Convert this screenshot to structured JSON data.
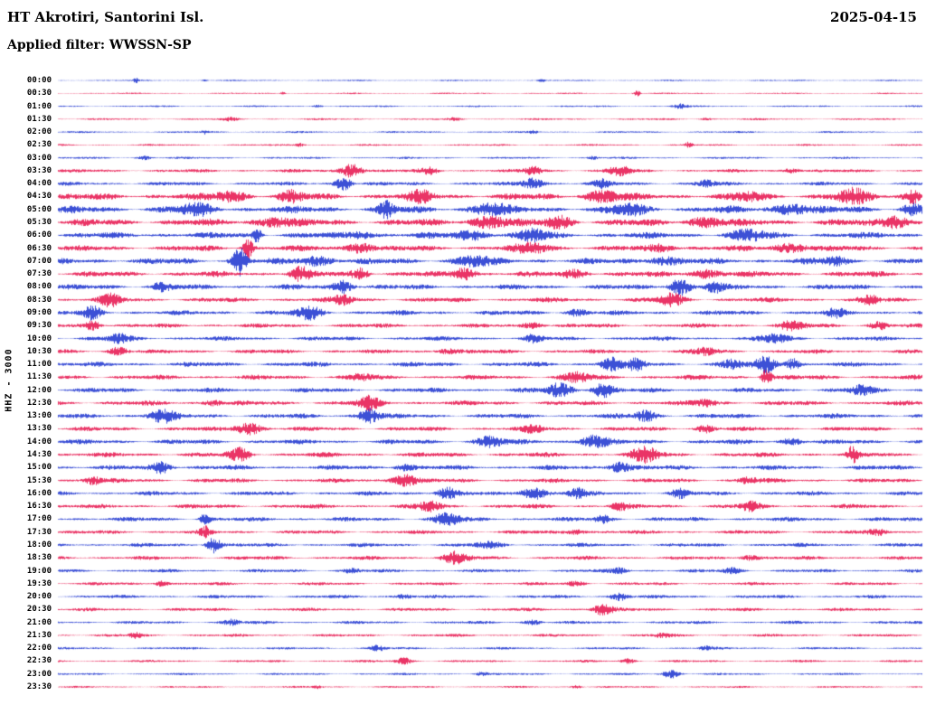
{
  "header": {
    "station_title": "HT Akrotiri, Santorini Isl.",
    "date": "2025-04-15",
    "filter_label": "Applied filter: WWSSN-SP"
  },
  "left_axis": {
    "channel_label": "HHZ - 3000"
  },
  "chart_data": {
    "type": "line",
    "subtype": "helicorder-seismogram",
    "title": "HT Akrotiri, Santorini Isl.",
    "date": "2025-04-15",
    "filter": "WWSSN-SP",
    "ylabel": "HHZ - 3000",
    "row_duration_minutes": 30,
    "rows_count": 48,
    "legend": "none",
    "grid": false,
    "colors": {
      "blue": "#0a23cc",
      "red": "#e4003f"
    },
    "rows": [
      {
        "time": "00:00",
        "color": "blue",
        "noise": 0.6,
        "events": [
          [
            0.09,
            2.5,
            0.003
          ],
          [
            0.17,
            1.5,
            0.003
          ],
          [
            0.56,
            2,
            0.003
          ]
        ]
      },
      {
        "time": "00:30",
        "color": "red",
        "noise": 0.6,
        "events": [
          [
            0.26,
            1.5,
            0.003
          ],
          [
            0.67,
            3.5,
            0.004
          ]
        ]
      },
      {
        "time": "01:00",
        "color": "blue",
        "noise": 0.7,
        "events": [
          [
            0.3,
            1.5,
            0.006
          ],
          [
            0.72,
            2.5,
            0.008
          ]
        ]
      },
      {
        "time": "01:30",
        "color": "red",
        "noise": 0.8,
        "events": [
          [
            0.2,
            1.8,
            0.008
          ],
          [
            0.46,
            1.8,
            0.006
          ],
          [
            0.75,
            1.5,
            0.006
          ]
        ]
      },
      {
        "time": "02:00",
        "color": "blue",
        "noise": 0.8,
        "events": [
          [
            0.17,
            2,
            0.004
          ],
          [
            0.55,
            1.5,
            0.005
          ]
        ]
      },
      {
        "time": "02:30",
        "color": "red",
        "noise": 0.8,
        "events": [
          [
            0.28,
            2,
            0.006
          ],
          [
            0.73,
            3.2,
            0.004
          ]
        ]
      },
      {
        "time": "03:00",
        "color": "blue",
        "noise": 0.9,
        "events": [
          [
            0.1,
            2,
            0.008
          ],
          [
            0.62,
            1.8,
            0.006
          ]
        ]
      },
      {
        "time": "03:30",
        "color": "red",
        "noise": 1.4,
        "events": [
          [
            0.34,
            8,
            0.012
          ],
          [
            0.43,
            3.5,
            0.01
          ],
          [
            0.55,
            4.5,
            0.01
          ],
          [
            0.65,
            5.5,
            0.012
          ],
          [
            0.85,
            3,
            0.01
          ]
        ]
      },
      {
        "time": "04:00",
        "color": "blue",
        "noise": 1.6,
        "events": [
          [
            0.33,
            8,
            0.009
          ],
          [
            0.55,
            6.5,
            0.012
          ],
          [
            0.63,
            4,
            0.01
          ],
          [
            0.75,
            3.5,
            0.01
          ]
        ]
      },
      {
        "time": "04:30",
        "color": "red",
        "noise": 2.8,
        "events": [
          [
            0.2,
            5,
            0.02
          ],
          [
            0.27,
            6,
            0.012
          ],
          [
            0.42,
            5,
            0.015
          ],
          [
            0.63,
            6,
            0.02
          ],
          [
            0.8,
            4,
            0.015
          ],
          [
            0.92,
            7,
            0.02
          ],
          [
            0.99,
            8,
            0.01
          ]
        ]
      },
      {
        "time": "05:00",
        "color": "blue",
        "noise": 3.0,
        "events": [
          [
            0.16,
            5,
            0.02
          ],
          [
            0.38,
            8,
            0.008
          ],
          [
            0.5,
            6,
            0.02
          ],
          [
            0.66,
            5,
            0.02
          ],
          [
            0.85,
            6,
            0.02
          ],
          [
            0.99,
            7,
            0.01
          ]
        ]
      },
      {
        "time": "05:30",
        "color": "red",
        "noise": 3.0,
        "events": [
          [
            0.25,
            5,
            0.02
          ],
          [
            0.5,
            7,
            0.02
          ],
          [
            0.58,
            6,
            0.015
          ],
          [
            0.75,
            5,
            0.02
          ],
          [
            0.97,
            7,
            0.015
          ]
        ]
      },
      {
        "time": "06:00",
        "color": "blue",
        "noise": 2.6,
        "events": [
          [
            0.23,
            9,
            0.005
          ],
          [
            0.35,
            4,
            0.015
          ],
          [
            0.48,
            5,
            0.02
          ],
          [
            0.55,
            6,
            0.015
          ],
          [
            0.8,
            5,
            0.02
          ]
        ]
      },
      {
        "time": "06:30",
        "color": "red",
        "noise": 2.4,
        "events": [
          [
            0.22,
            11,
            0.006
          ],
          [
            0.35,
            6,
            0.015
          ],
          [
            0.55,
            5,
            0.02
          ],
          [
            0.7,
            4,
            0.015
          ],
          [
            0.85,
            5,
            0.02
          ]
        ]
      },
      {
        "time": "07:00",
        "color": "blue",
        "noise": 2.6,
        "events": [
          [
            0.21,
            15,
            0.008
          ],
          [
            0.3,
            5,
            0.02
          ],
          [
            0.48,
            5,
            0.02
          ],
          [
            0.7,
            4.5,
            0.02
          ],
          [
            0.9,
            4,
            0.015
          ]
        ]
      },
      {
        "time": "07:30",
        "color": "red",
        "noise": 2.4,
        "events": [
          [
            0.28,
            7,
            0.012
          ],
          [
            0.35,
            6,
            0.01
          ],
          [
            0.47,
            7,
            0.012
          ],
          [
            0.6,
            4,
            0.015
          ],
          [
            0.75,
            4.5,
            0.02
          ]
        ]
      },
      {
        "time": "08:00",
        "color": "blue",
        "noise": 2.2,
        "events": [
          [
            0.12,
            4,
            0.012
          ],
          [
            0.33,
            7,
            0.012
          ],
          [
            0.72,
            9,
            0.012
          ],
          [
            0.76,
            6,
            0.01
          ]
        ]
      },
      {
        "time": "08:30",
        "color": "red",
        "noise": 2.0,
        "events": [
          [
            0.06,
            6,
            0.012
          ],
          [
            0.33,
            5,
            0.012
          ],
          [
            0.71,
            7,
            0.012
          ],
          [
            0.94,
            4.5,
            0.01
          ]
        ]
      },
      {
        "time": "09:00",
        "color": "blue",
        "noise": 2.0,
        "events": [
          [
            0.04,
            6.5,
            0.01
          ],
          [
            0.29,
            7,
            0.015
          ],
          [
            0.6,
            3.5,
            0.012
          ],
          [
            0.9,
            4,
            0.01
          ]
        ]
      },
      {
        "time": "09:30",
        "color": "red",
        "noise": 1.8,
        "events": [
          [
            0.04,
            5,
            0.01
          ],
          [
            0.55,
            3.5,
            0.012
          ],
          [
            0.85,
            4.5,
            0.015
          ],
          [
            0.95,
            4.5,
            0.01
          ]
        ]
      },
      {
        "time": "10:00",
        "color": "blue",
        "noise": 1.8,
        "events": [
          [
            0.07,
            4.5,
            0.012
          ],
          [
            0.55,
            3.5,
            0.01
          ],
          [
            0.83,
            4.5,
            0.015
          ]
        ]
      },
      {
        "time": "10:30",
        "color": "red",
        "noise": 1.8,
        "events": [
          [
            0.07,
            4.5,
            0.01
          ],
          [
            0.45,
            3,
            0.012
          ],
          [
            0.75,
            3.5,
            0.012
          ]
        ]
      },
      {
        "time": "11:00",
        "color": "blue",
        "noise": 2.0,
        "events": [
          [
            0.64,
            7,
            0.012
          ],
          [
            0.67,
            8,
            0.008
          ],
          [
            0.78,
            4.5,
            0.012
          ],
          [
            0.82,
            8,
            0.012
          ],
          [
            0.85,
            7,
            0.008
          ]
        ]
      },
      {
        "time": "11:30",
        "color": "red",
        "noise": 2.0,
        "events": [
          [
            0.35,
            3.5,
            0.012
          ],
          [
            0.6,
            5,
            0.015
          ],
          [
            0.82,
            9,
            0.006
          ]
        ]
      },
      {
        "time": "12:00",
        "color": "blue",
        "noise": 2.0,
        "events": [
          [
            0.58,
            7,
            0.015
          ],
          [
            0.63,
            8,
            0.012
          ],
          [
            0.93,
            5,
            0.012
          ]
        ]
      },
      {
        "time": "12:30",
        "color": "red",
        "noise": 2.0,
        "events": [
          [
            0.18,
            3.5,
            0.01
          ],
          [
            0.36,
            7,
            0.012
          ],
          [
            0.75,
            3.5,
            0.012
          ]
        ]
      },
      {
        "time": "13:00",
        "color": "blue",
        "noise": 2.0,
        "events": [
          [
            0.12,
            7,
            0.015
          ],
          [
            0.36,
            8,
            0.012
          ],
          [
            0.68,
            6,
            0.012
          ]
        ]
      },
      {
        "time": "13:30",
        "color": "red",
        "noise": 1.8,
        "events": [
          [
            0.22,
            7,
            0.015
          ],
          [
            0.55,
            3.5,
            0.012
          ],
          [
            0.75,
            4,
            0.01
          ]
        ]
      },
      {
        "time": "14:00",
        "color": "blue",
        "noise": 2.0,
        "events": [
          [
            0.5,
            6,
            0.015
          ],
          [
            0.62,
            7,
            0.015
          ],
          [
            0.85,
            3.5,
            0.012
          ]
        ]
      },
      {
        "time": "14:30",
        "color": "red",
        "noise": 2.0,
        "events": [
          [
            0.21,
            6.5,
            0.012
          ],
          [
            0.68,
            8,
            0.015
          ],
          [
            0.92,
            9,
            0.006
          ]
        ]
      },
      {
        "time": "15:00",
        "color": "blue",
        "noise": 2.0,
        "events": [
          [
            0.12,
            6.5,
            0.012
          ],
          [
            0.4,
            3.5,
            0.012
          ],
          [
            0.65,
            6.5,
            0.012
          ]
        ]
      },
      {
        "time": "15:30",
        "color": "red",
        "noise": 1.8,
        "events": [
          [
            0.04,
            4.5,
            0.01
          ],
          [
            0.4,
            7,
            0.015
          ],
          [
            0.8,
            3.5,
            0.012
          ]
        ]
      },
      {
        "time": "16:00",
        "color": "blue",
        "noise": 1.8,
        "events": [
          [
            0.45,
            6.5,
            0.012
          ],
          [
            0.55,
            7,
            0.015
          ],
          [
            0.6,
            5.5,
            0.01
          ],
          [
            0.72,
            4.5,
            0.01
          ]
        ]
      },
      {
        "time": "16:30",
        "color": "red",
        "noise": 1.8,
        "events": [
          [
            0.43,
            5.5,
            0.012
          ],
          [
            0.65,
            3.5,
            0.01
          ],
          [
            0.8,
            4.5,
            0.012
          ]
        ]
      },
      {
        "time": "17:00",
        "color": "blue",
        "noise": 1.8,
        "events": [
          [
            0.17,
            6.5,
            0.006
          ],
          [
            0.45,
            6.5,
            0.015
          ],
          [
            0.63,
            4,
            0.01
          ]
        ]
      },
      {
        "time": "17:30",
        "color": "red",
        "noise": 1.6,
        "events": [
          [
            0.17,
            5.5,
            0.006
          ],
          [
            0.6,
            3,
            0.012
          ],
          [
            0.95,
            3.5,
            0.01
          ]
        ]
      },
      {
        "time": "18:00",
        "color": "blue",
        "noise": 1.6,
        "events": [
          [
            0.18,
            9,
            0.008
          ],
          [
            0.5,
            3,
            0.015
          ]
        ]
      },
      {
        "time": "18:30",
        "color": "red",
        "noise": 1.6,
        "events": [
          [
            0.46,
            6.5,
            0.015
          ],
          [
            0.8,
            3,
            0.012
          ]
        ]
      },
      {
        "time": "19:00",
        "color": "blue",
        "noise": 1.4,
        "events": [
          [
            0.34,
            2.5,
            0.01
          ],
          [
            0.65,
            3,
            0.01
          ],
          [
            0.78,
            3,
            0.01
          ]
        ]
      },
      {
        "time": "19:30",
        "color": "red",
        "noise": 1.3,
        "events": [
          [
            0.12,
            3.5,
            0.008
          ],
          [
            0.6,
            2.5,
            0.01
          ]
        ]
      },
      {
        "time": "20:00",
        "color": "blue",
        "noise": 1.4,
        "events": [
          [
            0.4,
            2.5,
            0.01
          ],
          [
            0.65,
            4.5,
            0.01
          ]
        ]
      },
      {
        "time": "20:30",
        "color": "red",
        "noise": 1.4,
        "events": [
          [
            0.63,
            6.5,
            0.012
          ]
        ]
      },
      {
        "time": "21:00",
        "color": "blue",
        "noise": 1.3,
        "events": [
          [
            0.2,
            3,
            0.01
          ],
          [
            0.55,
            2.5,
            0.01
          ]
        ]
      },
      {
        "time": "21:30",
        "color": "red",
        "noise": 1.2,
        "events": [
          [
            0.09,
            3,
            0.008
          ],
          [
            0.7,
            2.2,
            0.01
          ]
        ]
      },
      {
        "time": "22:00",
        "color": "blue",
        "noise": 1.0,
        "events": [
          [
            0.37,
            3,
            0.008
          ],
          [
            0.75,
            2.2,
            0.008
          ]
        ]
      },
      {
        "time": "22:30",
        "color": "red",
        "noise": 1.0,
        "events": [
          [
            0.4,
            3.5,
            0.01
          ],
          [
            0.66,
            2.5,
            0.008
          ]
        ]
      },
      {
        "time": "23:00",
        "color": "blue",
        "noise": 0.9,
        "events": [
          [
            0.49,
            2,
            0.008
          ],
          [
            0.71,
            4.5,
            0.01
          ]
        ]
      },
      {
        "time": "23:30",
        "color": "red",
        "noise": 0.8,
        "events": [
          [
            0.3,
            1.8,
            0.006
          ],
          [
            0.6,
            1.8,
            0.006
          ]
        ]
      }
    ]
  }
}
